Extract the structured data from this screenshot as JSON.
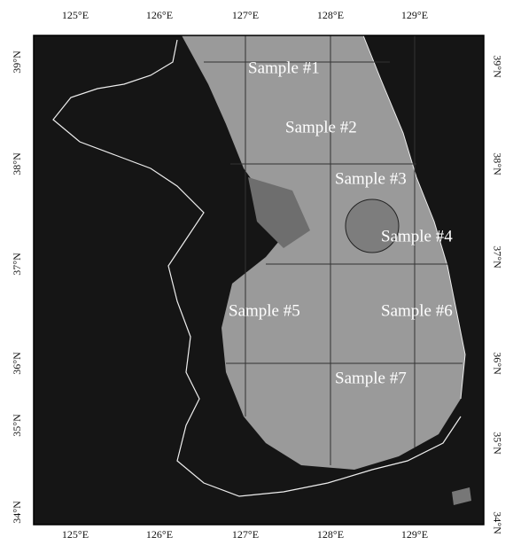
{
  "map": {
    "lon_labels": [
      "125°E",
      "126°E",
      "127°E",
      "128°E",
      "129°E"
    ],
    "lat_labels": [
      "39°N",
      "38°N",
      "37°N",
      "36°N",
      "35°N",
      "34°N"
    ],
    "samples": [
      "Sample #1",
      "Sample #2",
      "Sample #3",
      "Sample #4",
      "Sample #5",
      "Sample #6",
      "Sample #7"
    ]
  }
}
